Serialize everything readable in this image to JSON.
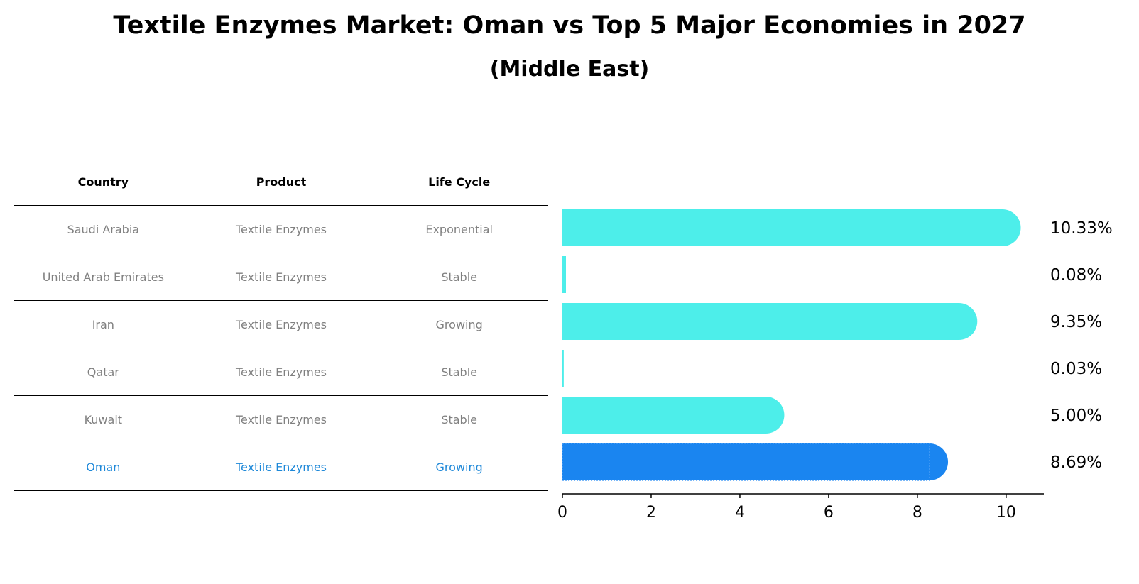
{
  "chart_data": {
    "type": "bar",
    "orientation": "horizontal",
    "title": "Textile Enzymes Market: Oman vs Top 5 Major Economies in 2027",
    "subtitle": "(Middle East)",
    "table": {
      "columns": [
        "Country",
        "Product",
        "Life Cycle"
      ],
      "rows": [
        {
          "country": "Saudi Arabia",
          "product": "Textile Enzymes",
          "life_cycle": "Exponential"
        },
        {
          "country": "United Arab Emirates",
          "product": "Textile Enzymes",
          "life_cycle": "Stable"
        },
        {
          "country": "Iran",
          "product": "Textile Enzymes",
          "life_cycle": "Growing"
        },
        {
          "country": "Qatar",
          "product": "Textile Enzymes",
          "life_cycle": "Stable"
        },
        {
          "country": "Kuwait",
          "product": "Textile Enzymes",
          "life_cycle": "Stable"
        },
        {
          "country": "Oman",
          "product": "Textile Enzymes",
          "life_cycle": "Growing"
        }
      ]
    },
    "categories": [
      "Saudi Arabia",
      "United Arab Emirates",
      "Iran",
      "Qatar",
      "Kuwait",
      "Oman"
    ],
    "values": [
      10.33,
      0.08,
      9.35,
      0.03,
      5.0,
      8.69
    ],
    "value_labels": [
      "10.33%",
      "0.08%",
      "9.35%",
      "0.03%",
      "5.00%",
      "8.69%"
    ],
    "highlight": "Oman",
    "xlim": [
      0,
      10.85
    ],
    "xticks": [
      0,
      2,
      4,
      6,
      8,
      10
    ],
    "xtick_labels": [
      "0",
      "2",
      "4",
      "6",
      "8",
      "10"
    ],
    "colors": {
      "bar": "#4deeea",
      "highlight": "#1a85f0",
      "highlight_text": "#1e88d8",
      "muted_text": "#808080"
    }
  }
}
